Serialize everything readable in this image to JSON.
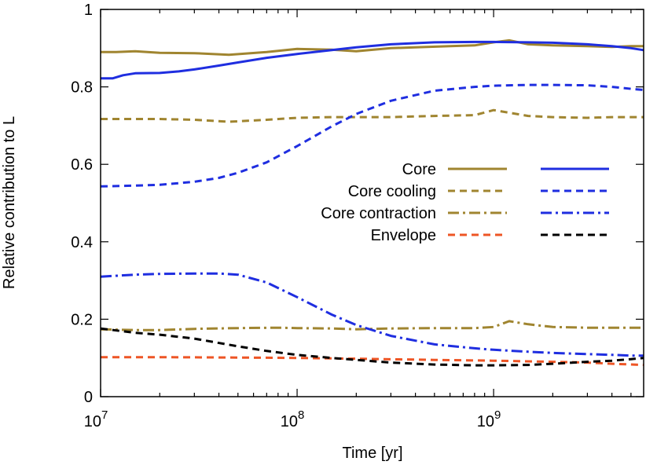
{
  "chart_data": {
    "type": "line",
    "xlabel": "Time [yr]",
    "ylabel": "Relative contribution to L",
    "xscale": "log",
    "xlim": [
      10000000,
      5800000000
    ],
    "ylim": [
      0,
      1
    ],
    "grid": false,
    "legend_position": "center-right",
    "x_ticks": [
      {
        "value": 10000000,
        "base": "10",
        "exp": "7"
      },
      {
        "value": 100000000,
        "base": "10",
        "exp": "8"
      },
      {
        "value": 1000000000,
        "base": "10",
        "exp": "9"
      }
    ],
    "y_ticks": [
      {
        "value": 0,
        "label": "0"
      },
      {
        "value": 0.2,
        "label": "0.2"
      },
      {
        "value": 0.4,
        "label": "0.4"
      },
      {
        "value": 0.6,
        "label": "0.6"
      },
      {
        "value": 0.8,
        "label": "0.8"
      },
      {
        "value": 1,
        "label": "1"
      }
    ],
    "legend": [
      {
        "label": "Core",
        "style": "solid"
      },
      {
        "label": "Core cooling",
        "style": "dash"
      },
      {
        "label": "Core contraction",
        "style": "dashdot"
      },
      {
        "label": "Envelope",
        "style": "dash"
      }
    ],
    "series": [
      {
        "group": "gold",
        "component": "Core",
        "color": "#a08530",
        "style": "solid",
        "x": [
          10000000,
          12000000,
          15000000,
          20000000,
          30000000,
          45000000,
          70000000,
          100000000,
          150000000,
          200000000,
          300000000,
          400000000,
          600000000,
          800000000,
          1000000000,
          1200000000,
          1500000000,
          2000000000,
          3000000000,
          4000000000,
          5000000000,
          5800000000
        ],
        "y": [
          0.89,
          0.89,
          0.892,
          0.888,
          0.887,
          0.883,
          0.89,
          0.898,
          0.896,
          0.892,
          0.9,
          0.902,
          0.905,
          0.907,
          0.915,
          0.92,
          0.91,
          0.907,
          0.905,
          0.903,
          0.905,
          0.905
        ]
      },
      {
        "group": "gold",
        "component": "Core cooling",
        "color": "#a08530",
        "style": "dash",
        "x": [
          10000000,
          15000000,
          20000000,
          30000000,
          45000000,
          70000000,
          100000000,
          150000000,
          200000000,
          300000000,
          500000000,
          800000000,
          1000000000,
          1500000000,
          2000000000,
          3000000000,
          4000000000,
          5000000000,
          5800000000
        ],
        "y": [
          0.717,
          0.717,
          0.717,
          0.715,
          0.71,
          0.715,
          0.72,
          0.722,
          0.722,
          0.722,
          0.725,
          0.727,
          0.74,
          0.725,
          0.722,
          0.72,
          0.722,
          0.722,
          0.722
        ]
      },
      {
        "group": "gold",
        "component": "Core contraction",
        "color": "#a08530",
        "style": "dashdot",
        "x": [
          10000000,
          15000000,
          20000000,
          30000000,
          50000000,
          80000000,
          100000000,
          150000000,
          200000000,
          300000000,
          500000000,
          800000000,
          1000000000,
          1200000000,
          1500000000,
          2000000000,
          3000000000,
          4000000000,
          5800000000
        ],
        "y": [
          0.174,
          0.172,
          0.172,
          0.175,
          0.177,
          0.178,
          0.177,
          0.176,
          0.174,
          0.176,
          0.177,
          0.177,
          0.18,
          0.195,
          0.187,
          0.18,
          0.178,
          0.178,
          0.178
        ]
      },
      {
        "group": "gold",
        "component": "Envelope",
        "color": "#ee5525",
        "style": "dash",
        "x": [
          10000000,
          20000000,
          50000000,
          100000000,
          200000000,
          500000000,
          1000000000,
          2000000000,
          3000000000,
          4000000000,
          5800000000
        ],
        "y": [
          0.102,
          0.102,
          0.101,
          0.1,
          0.098,
          0.095,
          0.093,
          0.09,
          0.088,
          0.085,
          0.082
        ]
      },
      {
        "group": "blue",
        "component": "Core",
        "color": "#1f2ee0",
        "style": "solid",
        "x": [
          10000000,
          11500000,
          13000000,
          15000000,
          20000000,
          25000000,
          30000000,
          40000000,
          50000000,
          70000000,
          100000000,
          150000000,
          200000000,
          300000000,
          500000000,
          800000000,
          1000000000,
          1500000000,
          2000000000,
          3000000000,
          4000000000,
          5000000000,
          5800000000
        ],
        "y": [
          0.822,
          0.822,
          0.83,
          0.835,
          0.836,
          0.84,
          0.845,
          0.855,
          0.863,
          0.875,
          0.885,
          0.895,
          0.902,
          0.91,
          0.915,
          0.916,
          0.916,
          0.915,
          0.914,
          0.91,
          0.905,
          0.9,
          0.895
        ]
      },
      {
        "group": "blue",
        "component": "Core cooling",
        "color": "#1f2ee0",
        "style": "dash",
        "x": [
          10000000,
          15000000,
          20000000,
          30000000,
          40000000,
          50000000,
          70000000,
          100000000,
          150000000,
          200000000,
          300000000,
          500000000,
          800000000,
          1000000000,
          1500000000,
          2000000000,
          3000000000,
          4000000000,
          5000000000,
          5800000000
        ],
        "y": [
          0.543,
          0.545,
          0.547,
          0.555,
          0.565,
          0.578,
          0.605,
          0.647,
          0.698,
          0.73,
          0.764,
          0.79,
          0.8,
          0.803,
          0.805,
          0.805,
          0.804,
          0.8,
          0.795,
          0.792
        ]
      },
      {
        "group": "blue",
        "component": "Core contraction",
        "color": "#1f2ee0",
        "style": "dashdot",
        "x": [
          10000000,
          15000000,
          20000000,
          30000000,
          40000000,
          50000000,
          70000000,
          100000000,
          150000000,
          200000000,
          300000000,
          500000000,
          800000000,
          1000000000,
          1500000000,
          2000000000,
          3000000000,
          4000000000,
          5000000000,
          5800000000
        ],
        "y": [
          0.31,
          0.315,
          0.317,
          0.318,
          0.318,
          0.315,
          0.295,
          0.257,
          0.212,
          0.185,
          0.157,
          0.135,
          0.125,
          0.121,
          0.116,
          0.113,
          0.11,
          0.108,
          0.106,
          0.106
        ]
      },
      {
        "group": "blue",
        "component": "Envelope",
        "color": "#000000",
        "style": "dash",
        "x": [
          10000000,
          15000000,
          20000000,
          30000000,
          50000000,
          70000000,
          100000000,
          150000000,
          200000000,
          300000000,
          500000000,
          800000000,
          1000000000,
          1500000000,
          2000000000,
          3000000000,
          4000000000,
          5000000000,
          5800000000
        ],
        "y": [
          0.176,
          0.165,
          0.16,
          0.15,
          0.13,
          0.118,
          0.108,
          0.1,
          0.095,
          0.088,
          0.083,
          0.081,
          0.081,
          0.082,
          0.085,
          0.09,
          0.093,
          0.097,
          0.1
        ]
      }
    ]
  }
}
